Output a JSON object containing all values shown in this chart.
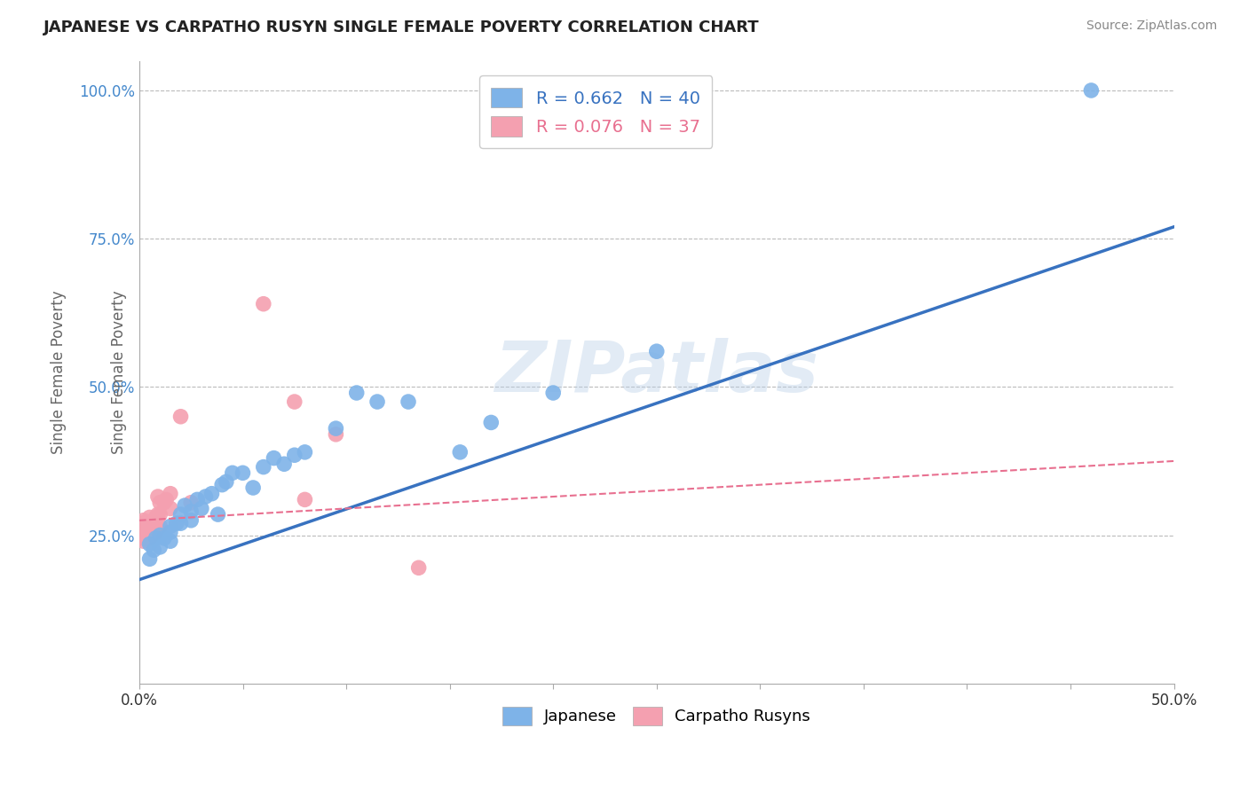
{
  "title": "JAPANESE VS CARPATHO RUSYN SINGLE FEMALE POVERTY CORRELATION CHART",
  "source": "Source: ZipAtlas.com",
  "ylabel": "Single Female Poverty",
  "xlim": [
    0.0,
    0.5
  ],
  "ylim": [
    0.0,
    1.05
  ],
  "xticks": [
    0.0,
    0.05,
    0.1,
    0.15,
    0.2,
    0.25,
    0.3,
    0.35,
    0.4,
    0.45,
    0.5
  ],
  "xticklabels": [
    "0.0%",
    "",
    "",
    "",
    "",
    "",
    "",
    "",
    "",
    "",
    "50.0%"
  ],
  "yticks": [
    0.25,
    0.5,
    0.75,
    1.0
  ],
  "yticklabels": [
    "25.0%",
    "50.0%",
    "75.0%",
    "100.0%"
  ],
  "japanese_R": 0.662,
  "japanese_N": 40,
  "carpatho_R": 0.076,
  "carpatho_N": 37,
  "japanese_color": "#7EB3E8",
  "carpatho_color": "#F4A0B0",
  "japanese_line_color": "#3872C0",
  "carpatho_line_color": "#E87090",
  "tick_color": "#4488CC",
  "japanese_x": [
    0.005,
    0.005,
    0.007,
    0.008,
    0.01,
    0.01,
    0.012,
    0.015,
    0.015,
    0.015,
    0.018,
    0.02,
    0.02,
    0.022,
    0.025,
    0.025,
    0.028,
    0.03,
    0.032,
    0.035,
    0.038,
    0.04,
    0.042,
    0.045,
    0.05,
    0.055,
    0.06,
    0.065,
    0.07,
    0.075,
    0.08,
    0.095,
    0.105,
    0.115,
    0.13,
    0.155,
    0.17,
    0.2,
    0.25,
    0.46
  ],
  "japanese_y": [
    0.21,
    0.235,
    0.225,
    0.245,
    0.23,
    0.25,
    0.245,
    0.255,
    0.24,
    0.265,
    0.27,
    0.27,
    0.285,
    0.3,
    0.275,
    0.29,
    0.31,
    0.295,
    0.315,
    0.32,
    0.285,
    0.335,
    0.34,
    0.355,
    0.355,
    0.33,
    0.365,
    0.38,
    0.37,
    0.385,
    0.39,
    0.43,
    0.49,
    0.475,
    0.475,
    0.39,
    0.44,
    0.49,
    0.56,
    1.0
  ],
  "carpatho_x": [
    0.0,
    0.0,
    0.001,
    0.001,
    0.002,
    0.002,
    0.002,
    0.003,
    0.003,
    0.004,
    0.004,
    0.005,
    0.005,
    0.005,
    0.005,
    0.006,
    0.006,
    0.007,
    0.008,
    0.008,
    0.008,
    0.009,
    0.009,
    0.01,
    0.01,
    0.01,
    0.012,
    0.013,
    0.015,
    0.015,
    0.02,
    0.025,
    0.06,
    0.075,
    0.08,
    0.095,
    0.135
  ],
  "carpatho_y": [
    0.245,
    0.26,
    0.255,
    0.27,
    0.24,
    0.26,
    0.275,
    0.245,
    0.255,
    0.26,
    0.27,
    0.245,
    0.255,
    0.265,
    0.28,
    0.25,
    0.265,
    0.275,
    0.28,
    0.255,
    0.27,
    0.285,
    0.315,
    0.265,
    0.285,
    0.305,
    0.305,
    0.31,
    0.295,
    0.32,
    0.45,
    0.305,
    0.64,
    0.475,
    0.31,
    0.42,
    0.195
  ],
  "jap_line_x": [
    0.0,
    0.5
  ],
  "jap_line_y": [
    0.175,
    0.77
  ],
  "carp_line_x": [
    0.0,
    0.5
  ],
  "carp_line_y": [
    0.275,
    0.375
  ]
}
